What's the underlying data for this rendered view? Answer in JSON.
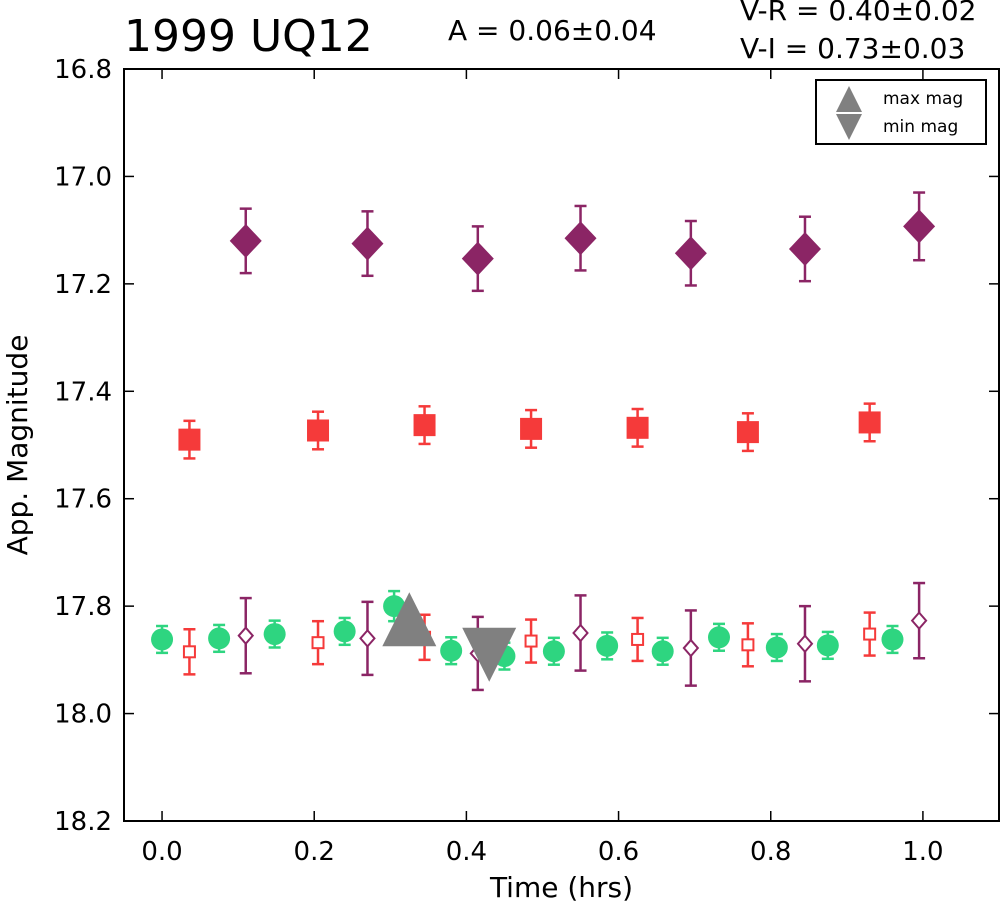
{
  "chart_data": {
    "type": "scatter",
    "title": "1999 UQ12",
    "amplitude_text": "A  = 0.06±0.04",
    "color_indices": [
      "V-R = 0.40±0.02",
      "V-I  = 0.73±0.03"
    ],
    "xlabel": "Time (hrs)",
    "ylabel": "App. Magnitude",
    "xlim": [
      -0.05,
      1.1
    ],
    "ylim": [
      18.2,
      16.8
    ],
    "y_inverted": true,
    "xticks": [
      "0.0",
      "0.2",
      "0.4",
      "0.6",
      "0.8",
      "1.0"
    ],
    "yticks": [
      "16.8",
      "17.0",
      "17.2",
      "17.4",
      "17.6",
      "17.8",
      "18.0",
      "18.2"
    ],
    "grid": false,
    "legend_position": "top-right",
    "legend": [
      {
        "label": "max mag",
        "marker": "triangle-up",
        "color": "#808080"
      },
      {
        "label": "min mag",
        "marker": "triangle-down",
        "color": "#808080"
      }
    ],
    "series": [
      {
        "marker": "diamond-filled",
        "color": "#8b2565",
        "x": [
          0.11,
          0.27,
          0.415,
          0.55,
          0.695,
          0.845,
          0.995
        ],
        "y": [
          17.12,
          17.125,
          17.153,
          17.115,
          17.143,
          17.135,
          17.093
        ],
        "err": [
          0.06,
          0.06,
          0.06,
          0.06,
          0.06,
          0.06,
          0.063
        ]
      },
      {
        "marker": "square-filled",
        "color": "#f53a3a",
        "x": [
          0.036,
          0.205,
          0.345,
          0.485,
          0.625,
          0.77,
          0.93
        ],
        "y": [
          17.49,
          17.473,
          17.463,
          17.47,
          17.468,
          17.476,
          17.458
        ],
        "err": [
          0.035,
          0.035,
          0.035,
          0.035,
          0.035,
          0.035,
          0.035
        ]
      },
      {
        "marker": "circle-filled",
        "color": "#2ed580",
        "x": [
          0.0,
          0.075,
          0.148,
          0.24,
          0.305,
          0.38,
          0.45,
          0.515,
          0.585,
          0.658,
          0.732,
          0.808,
          0.875,
          0.96
        ],
        "y": [
          17.862,
          17.86,
          17.852,
          17.847,
          17.8,
          17.883,
          17.893,
          17.884,
          17.874,
          17.884,
          17.858,
          17.877,
          17.873,
          17.862
        ],
        "err": [
          0.025,
          0.025,
          0.025,
          0.025,
          0.028,
          0.025,
          0.025,
          0.025,
          0.025,
          0.025,
          0.025,
          0.025,
          0.025,
          0.025
        ]
      },
      {
        "marker": "square-open",
        "color": "#f53a3a",
        "x": [
          0.036,
          0.205,
          0.345,
          0.485,
          0.625,
          0.77,
          0.93
        ],
        "y": [
          17.885,
          17.868,
          17.858,
          17.865,
          17.862,
          17.872,
          17.852
        ],
        "err": [
          0.042,
          0.04,
          0.042,
          0.04,
          0.04,
          0.04,
          0.04
        ]
      },
      {
        "marker": "diamond-open",
        "color": "#8b2565",
        "x": [
          0.11,
          0.27,
          0.415,
          0.55,
          0.695,
          0.845,
          0.995
        ],
        "y": [
          17.855,
          17.86,
          17.888,
          17.85,
          17.878,
          17.87,
          17.827
        ],
        "err": [
          0.07,
          0.068,
          0.068,
          0.07,
          0.07,
          0.07,
          0.07
        ]
      }
    ],
    "extrema": [
      {
        "kind": "max mag",
        "marker": "triangle-up",
        "color": "#808080",
        "x": 0.325,
        "y": 17.83
      },
      {
        "kind": "min mag",
        "marker": "triangle-down",
        "color": "#808080",
        "x": 0.43,
        "y": 17.885
      }
    ]
  }
}
